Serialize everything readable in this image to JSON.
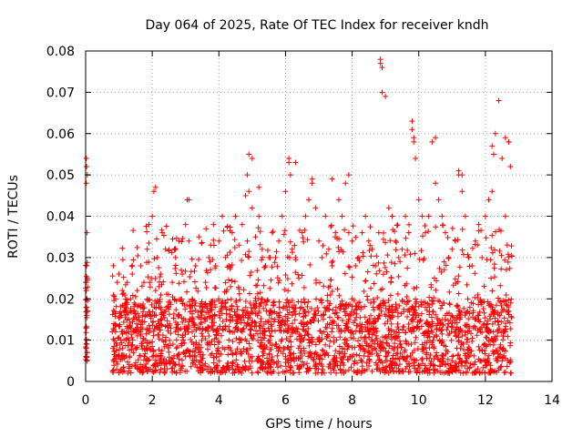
{
  "chart_data": {
    "type": "scatter",
    "title": "Day 064 of 2025, Rate Of TEC Index for receiver kndh",
    "xlabel": "GPS time / hours",
    "ylabel": "ROTI / TECUs",
    "xlim": [
      0,
      14
    ],
    "ylim": [
      0,
      0.08
    ],
    "xticks": [
      0,
      2,
      4,
      6,
      8,
      10,
      12,
      14
    ],
    "yticks": [
      0,
      0.01,
      0.02,
      0.03,
      0.04,
      0.05,
      0.06,
      0.07,
      0.08
    ],
    "xtick_labels": [
      "0",
      "2",
      "4",
      "6",
      "8",
      "10",
      "12",
      "14"
    ],
    "ytick_labels": [
      "0",
      "0.01",
      "0.02",
      "0.03",
      "0.04",
      "0.05",
      "0.06",
      "0.07",
      "0.08"
    ],
    "grid": true,
    "marker": "+",
    "color": "#ff0000",
    "series": [
      {
        "name": "ROTI",
        "x": [
          0.02,
          0.03,
          0.05,
          0.02,
          0.04,
          0.03,
          0.05,
          0.02,
          0.04,
          0.03,
          0.03,
          0.04,
          0.02,
          0.05,
          0.03,
          0.04,
          0.8,
          0.85,
          0.9,
          0.95,
          1.0,
          1.05,
          1.1,
          1.15,
          1.2,
          1.25,
          1.3,
          1.35,
          1.4,
          1.45,
          1.5,
          1.55,
          1.6,
          1.65,
          1.7,
          1.75,
          1.8,
          1.85,
          1.9,
          1.95,
          2.0,
          2.05,
          2.1,
          2.15,
          2.2,
          2.25,
          2.3,
          2.4,
          2.5,
          2.6,
          2.7,
          2.8,
          2.9,
          3.0,
          3.05,
          3.1,
          3.2,
          3.3,
          3.4,
          3.5,
          3.6,
          3.7,
          3.8,
          3.9,
          4.0,
          4.1,
          4.2,
          4.3,
          4.4,
          4.5,
          4.6,
          4.7,
          4.8,
          4.85,
          4.9,
          5.0,
          5.1,
          5.2,
          5.3,
          5.4,
          5.5,
          5.6,
          5.7,
          5.8,
          5.9,
          6.0,
          6.1,
          6.15,
          6.2,
          6.3,
          6.4,
          6.5,
          6.6,
          6.7,
          6.8,
          6.9,
          7.0,
          7.1,
          7.2,
          7.3,
          7.4,
          7.5,
          7.6,
          7.7,
          7.8,
          7.9,
          8.0,
          8.1,
          8.2,
          8.3,
          8.4,
          8.5,
          8.6,
          8.7,
          8.8,
          8.85,
          8.9,
          9.0,
          9.1,
          9.2,
          9.3,
          9.4,
          9.5,
          9.6,
          9.7,
          9.8,
          9.85,
          9.9,
          10.0,
          10.1,
          10.2,
          10.3,
          10.4,
          10.5,
          10.6,
          10.7,
          10.8,
          10.9,
          11.0,
          11.1,
          11.2,
          11.3,
          11.4,
          11.5,
          11.6,
          11.7,
          11.8,
          11.9,
          12.0,
          12.1,
          12.2,
          12.3,
          12.4,
          12.5,
          12.6,
          12.7,
          12.75,
          0.9,
          1.3,
          1.7,
          2.3,
          2.7,
          3.3,
          3.7,
          4.3,
          4.7,
          5.3,
          5.7,
          6.3,
          6.7,
          7.3,
          7.7,
          8.3,
          8.7,
          9.3,
          9.7,
          10.3,
          10.7,
          11.3,
          11.7,
          12.3,
          12.6,
          1.0,
          1.5,
          2.0,
          2.5,
          3.0,
          3.5,
          4.0,
          4.5,
          5.0,
          5.5,
          6.0,
          6.5,
          7.0,
          7.5,
          8.0,
          8.5,
          9.0,
          9.5,
          10.0,
          10.5,
          11.0,
          11.5,
          12.0,
          12.5,
          1.2,
          1.8,
          2.2,
          2.8,
          3.2,
          3.8,
          4.2,
          4.8,
          5.2,
          5.8,
          6.2,
          6.8,
          7.2,
          7.8,
          8.2,
          8.8,
          9.2,
          9.8,
          10.2,
          10.8,
          11.2,
          11.8,
          12.2,
          12.7,
          2.1,
          3.1,
          4.9,
          5.0,
          5.2,
          6.1,
          6.3,
          6.8,
          7.4,
          7.9,
          8.85,
          8.9,
          9.8,
          9.85,
          10.5,
          11.2,
          11.3,
          12.2,
          12.25,
          12.6,
          12.7
        ],
        "y": [
          0.054,
          0.052,
          0.05,
          0.048,
          0.036,
          0.028,
          0.025,
          0.022,
          0.02,
          0.018,
          0.01,
          0.009,
          0.008,
          0.007,
          0.006,
          0.005,
          0.012,
          0.014,
          0.02,
          0.024,
          0.026,
          0.016,
          0.022,
          0.01,
          0.018,
          0.024,
          0.012,
          0.02,
          0.026,
          0.015,
          0.008,
          0.022,
          0.012,
          0.028,
          0.018,
          0.024,
          0.01,
          0.032,
          0.038,
          0.016,
          0.04,
          0.046,
          0.022,
          0.03,
          0.014,
          0.026,
          0.036,
          0.032,
          0.018,
          0.024,
          0.03,
          0.034,
          0.026,
          0.038,
          0.044,
          0.034,
          0.02,
          0.028,
          0.035,
          0.018,
          0.024,
          0.03,
          0.016,
          0.028,
          0.034,
          0.04,
          0.03,
          0.028,
          0.036,
          0.04,
          0.033,
          0.038,
          0.045,
          0.05,
          0.055,
          0.042,
          0.035,
          0.04,
          0.032,
          0.028,
          0.03,
          0.036,
          0.03,
          0.034,
          0.04,
          0.046,
          0.053,
          0.05,
          0.032,
          0.03,
          0.025,
          0.036,
          0.04,
          0.044,
          0.048,
          0.042,
          0.034,
          0.03,
          0.04,
          0.032,
          0.028,
          0.036,
          0.044,
          0.04,
          0.048,
          0.036,
          0.034,
          0.028,
          0.03,
          0.036,
          0.04,
          0.034,
          0.032,
          0.028,
          0.036,
          0.077,
          0.07,
          0.069,
          0.042,
          0.04,
          0.034,
          0.03,
          0.032,
          0.04,
          0.036,
          0.063,
          0.058,
          0.054,
          0.044,
          0.04,
          0.036,
          0.04,
          0.058,
          0.048,
          0.044,
          0.04,
          0.036,
          0.03,
          0.032,
          0.034,
          0.05,
          0.046,
          0.04,
          0.03,
          0.028,
          0.034,
          0.038,
          0.03,
          0.04,
          0.044,
          0.046,
          0.06,
          0.068,
          0.054,
          0.04,
          0.058,
          0.052,
          0.012,
          0.01,
          0.013,
          0.01,
          0.012,
          0.008,
          0.011,
          0.01,
          0.012,
          0.01,
          0.009,
          0.012,
          0.01,
          0.011,
          0.008,
          0.012,
          0.01,
          0.011,
          0.009,
          0.012,
          0.01,
          0.011,
          0.013,
          0.01,
          0.012,
          0.006,
          0.004,
          0.006,
          0.005,
          0.006,
          0.004,
          0.005,
          0.007,
          0.006,
          0.005,
          0.006,
          0.004,
          0.006,
          0.005,
          0.006,
          0.007,
          0.005,
          0.006,
          0.004,
          0.006,
          0.005,
          0.006,
          0.004,
          0.005,
          0.017,
          0.016,
          0.018,
          0.016,
          0.017,
          0.015,
          0.018,
          0.016,
          0.017,
          0.016,
          0.018,
          0.015,
          0.017,
          0.016,
          0.018,
          0.016,
          0.017,
          0.015,
          0.018,
          0.016,
          0.017,
          0.016,
          0.018,
          0.017,
          0.047,
          0.044,
          0.046,
          0.054,
          0.047,
          0.054,
          0.053,
          0.049,
          0.049,
          0.05,
          0.078,
          0.076,
          0.061,
          0.059,
          0.059,
          0.051,
          0.05,
          0.057,
          0.055,
          0.059,
          0.058
        ]
      }
    ]
  }
}
